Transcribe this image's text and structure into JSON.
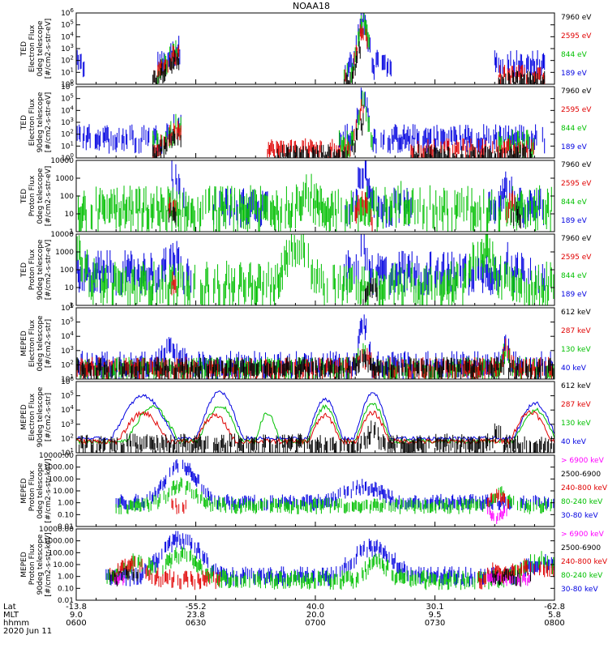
{
  "figure": {
    "title": "NOAA18",
    "date_label": "2020 Jun 11",
    "footer_row_labels": [
      "Lat",
      "MLT",
      "hhmm"
    ]
  },
  "colors": {
    "black": "#000000",
    "red": "#e00000",
    "green": "#00c000",
    "blue": "#0000e0",
    "magenta": "#ff00ff"
  },
  "chart_data": [
    {
      "type": "scatter",
      "panel": "ted-electron-0deg",
      "ylabel_lines": [
        "TED",
        "Electron Flux",
        "0deg telescope",
        "[#/cm2-s-str-eV]"
      ],
      "yscale": "log",
      "ylim": [
        1,
        1000000
      ],
      "y_tick_labels": [
        "10^0",
        "10^1",
        "10^2",
        "10^3",
        "10^4",
        "10^5",
        "10^6"
      ],
      "legend": [
        {
          "label": "7960 eV",
          "color": "black"
        },
        {
          "label": "2595 eV",
          "color": "red"
        },
        {
          "label": "844 eV",
          "color": "green"
        },
        {
          "label": "189 eV",
          "color": "blue"
        }
      ],
      "active_intervals": [
        [
          10,
          22
        ],
        [
          56,
          66
        ],
        [
          87,
          98
        ]
      ],
      "peak_value": 500000
    },
    {
      "type": "scatter",
      "panel": "ted-electron-90deg",
      "ylabel_lines": [
        "TED",
        "Electron Flux",
        "90deg telescope",
        "[#/cm2-s-str-eV]"
      ],
      "yscale": "log",
      "ylim": [
        1,
        1000000
      ],
      "y_tick_labels": [
        "10^0",
        "10^1",
        "10^2",
        "10^3",
        "10^4",
        "10^5",
        "10^6"
      ],
      "legend": [
        {
          "label": "7960 eV",
          "color": "black"
        },
        {
          "label": "2595 eV",
          "color": "red"
        },
        {
          "label": "844 eV",
          "color": "green"
        },
        {
          "label": "189 eV",
          "color": "blue"
        }
      ],
      "active_intervals": [
        [
          10,
          22
        ],
        [
          56,
          66
        ],
        [
          87,
          98
        ]
      ],
      "peak_value": 200000
    },
    {
      "type": "scatter",
      "panel": "ted-proton-0deg",
      "ylabel_lines": [
        "TED",
        "Proton Flux",
        "0deg telescope",
        "[#/cm2-s-str-eV]"
      ],
      "yscale": "log",
      "ylim": [
        1,
        10000
      ],
      "y_tick_labels": [
        "1",
        "10",
        "100",
        "1000",
        "10000"
      ],
      "legend": [
        {
          "label": "7960 eV",
          "color": "black"
        },
        {
          "label": "2595 eV",
          "color": "red"
        },
        {
          "label": "844 eV",
          "color": "green"
        },
        {
          "label": "189 eV",
          "color": "blue"
        }
      ],
      "active_intervals": [
        [
          0,
          100
        ]
      ],
      "peak_value": 10000
    },
    {
      "type": "scatter",
      "panel": "ted-proton-90deg",
      "ylabel_lines": [
        "TED",
        "Proton Flux",
        "90deg telescope",
        "[#/cm2-s-str-eV]"
      ],
      "yscale": "log",
      "ylim": [
        1,
        10000
      ],
      "y_tick_labels": [
        "1",
        "10",
        "100",
        "1000",
        "10000"
      ],
      "legend": [
        {
          "label": "7960 eV",
          "color": "black"
        },
        {
          "label": "2595 eV",
          "color": "red"
        },
        {
          "label": "844 eV",
          "color": "green"
        },
        {
          "label": "189 eV",
          "color": "blue"
        }
      ],
      "active_intervals": [
        [
          0,
          100
        ]
      ],
      "peak_value": 5000
    },
    {
      "type": "scatter",
      "panel": "meped-electron-0deg",
      "ylabel_lines": [
        "MEPED",
        "Electron Flux",
        "0deg telescope",
        "[#/cm2-s-str]"
      ],
      "yscale": "log",
      "ylim": [
        10,
        1000000
      ],
      "y_tick_labels": [
        "10^1",
        "10^2",
        "10^3",
        "10^4",
        "10^5",
        "10^6"
      ],
      "legend": [
        {
          "label": "612 keV",
          "color": "black"
        },
        {
          "label": "287 keV",
          "color": "red"
        },
        {
          "label": "130 keV",
          "color": "green"
        },
        {
          "label": "40 keV",
          "color": "blue"
        }
      ],
      "active_intervals": [
        [
          0,
          100
        ]
      ],
      "peak_value": 150000
    },
    {
      "type": "line",
      "panel": "meped-electron-90deg",
      "ylabel_lines": [
        "MEPED",
        "Electron Flux",
        "90deg telescope",
        "[#/cm2-s-str]"
      ],
      "yscale": "log",
      "ylim": [
        10,
        1000000
      ],
      "y_tick_labels": [
        "10^1",
        "10^2",
        "10^3",
        "10^4",
        "10^5",
        "10^6"
      ],
      "legend": [
        {
          "label": "612 keV",
          "color": "black"
        },
        {
          "label": "287 keV",
          "color": "red"
        },
        {
          "label": "130 keV",
          "color": "green"
        },
        {
          "label": "40 keV",
          "color": "blue"
        }
      ],
      "active_intervals": [
        [
          0,
          100
        ]
      ],
      "peak_value": 300000
    },
    {
      "type": "scatter",
      "panel": "meped-proton-0deg",
      "ylabel_lines": [
        "MEPED",
        "Proton Flux",
        "0deg telescope",
        "[#/cm2-s-str-keV]"
      ],
      "yscale": "log",
      "ylim": [
        0.01,
        10000
      ],
      "y_tick_labels": [
        "0.01",
        "0.10",
        "1.00",
        "10.00",
        "100.00",
        "1000.00",
        "10000.00"
      ],
      "legend": [
        {
          "label": "> 6900 keV",
          "color": "magenta"
        },
        {
          "label": "2500-6900",
          "color": "black"
        },
        {
          "label": "240-800 keV",
          "color": "red"
        },
        {
          "label": "80-240 keV",
          "color": "green"
        },
        {
          "label": "30-80 keV",
          "color": "blue"
        }
      ],
      "active_intervals": [
        [
          0,
          100
        ]
      ],
      "peak_value": 3000
    },
    {
      "type": "scatter",
      "panel": "meped-proton-90deg",
      "ylabel_lines": [
        "MEPED",
        "Proton Flux",
        "90deg telescope",
        "[#/cm2-s-str-keV]"
      ],
      "yscale": "log",
      "ylim": [
        0.01,
        10000
      ],
      "y_tick_labels": [
        "0.01",
        "0.10",
        "1.00",
        "10.00",
        "100.00",
        "1000.00",
        "10000.00"
      ],
      "legend": [
        {
          "label": "> 6900 keV",
          "color": "magenta"
        },
        {
          "label": "2500-6900",
          "color": "black"
        },
        {
          "label": "240-800 keV",
          "color": "red"
        },
        {
          "label": "80-240 keV",
          "color": "green"
        },
        {
          "label": "30-80 keV",
          "color": "blue"
        }
      ],
      "active_intervals": [
        [
          0,
          100
        ]
      ],
      "peak_value": 3000
    }
  ],
  "x_axis": {
    "unit_range": [
      0,
      120
    ],
    "ticks": [
      {
        "value": 0,
        "lat": "-13.8",
        "mlt": "9.0",
        "hhmm": "0600"
      },
      {
        "value": 30,
        "lat": "-55.2",
        "mlt": "23.8",
        "hhmm": "0630"
      },
      {
        "value": 60,
        "lat": "40.0",
        "mlt": "20.0",
        "hhmm": "0700"
      },
      {
        "value": 90,
        "lat": "30.1",
        "mlt": "9.5",
        "hhmm": "0730"
      },
      {
        "value": 120,
        "lat": "-62.8",
        "mlt": "5.8",
        "hhmm": "0800"
      }
    ]
  }
}
